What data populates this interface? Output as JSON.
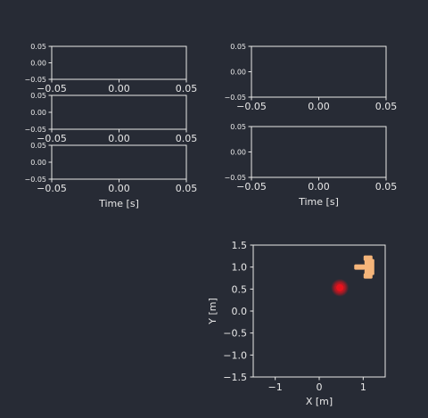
{
  "chart_data": [
    {
      "type": "line",
      "id": "left-1",
      "panel": "left",
      "row": 1,
      "xlim": [
        -0.05,
        0.05
      ],
      "ylim": [
        -0.05,
        0.05
      ],
      "x_ticks": [
        "−0.05",
        "0.00",
        "0.05"
      ],
      "y_ticks": [
        "0.05",
        "0.00",
        "−0.05"
      ],
      "xlabel": "",
      "series": []
    },
    {
      "type": "line",
      "id": "left-2",
      "panel": "left",
      "row": 2,
      "xlim": [
        -0.05,
        0.05
      ],
      "ylim": [
        -0.05,
        0.05
      ],
      "x_ticks": [
        "−0.05",
        "0.00",
        "0.05"
      ],
      "y_ticks": [
        "0.05",
        "0.00",
        "−0.05"
      ],
      "xlabel": "",
      "series": []
    },
    {
      "type": "line",
      "id": "left-3",
      "panel": "left",
      "row": 3,
      "xlim": [
        -0.05,
        0.05
      ],
      "ylim": [
        -0.05,
        0.05
      ],
      "x_ticks": [
        "−0.05",
        "0.00",
        "0.05"
      ],
      "y_ticks": [
        "0.05",
        "0.00",
        "−0.05"
      ],
      "xlabel": "Time [s]",
      "series": []
    },
    {
      "type": "line",
      "id": "right-1",
      "panel": "right",
      "row": 1,
      "xlim": [
        -0.05,
        0.05
      ],
      "ylim": [
        -0.05,
        0.05
      ],
      "x_ticks": [
        "−0.05",
        "0.00",
        "0.05"
      ],
      "y_ticks": [
        "0.05",
        "0.00",
        "−0.05"
      ],
      "xlabel": "",
      "series": []
    },
    {
      "type": "line",
      "id": "right-2",
      "panel": "right",
      "row": 2,
      "xlim": [
        -0.05,
        0.05
      ],
      "ylim": [
        -0.05,
        0.05
      ],
      "x_ticks": [
        "−0.05",
        "0.00",
        "0.05"
      ],
      "y_ticks": [
        "0.05",
        "0.00",
        "−0.05"
      ],
      "xlabel": "Time [s]",
      "series": []
    },
    {
      "type": "scatter",
      "id": "xy-map",
      "panel": "map",
      "xlim": [
        -1.5,
        1.5
      ],
      "ylim": [
        -1.5,
        1.5
      ],
      "x_ticks": [
        -1,
        0,
        1
      ],
      "y_ticks": [
        1.5,
        1.0,
        0.5,
        0.0,
        -0.5,
        -1.0,
        -1.5
      ],
      "x_tick_labels": [
        "−1",
        "0",
        "1"
      ],
      "y_tick_labels": [
        "1.5",
        "1.0",
        "0.5",
        "0.0",
        "−0.5",
        "−1.0",
        "−1.5"
      ],
      "xlabel": "X [m]",
      "ylabel": "Y [m]",
      "target": {
        "x": 0.47,
        "y": 0.53,
        "color": "#e8121c"
      },
      "robot": {
        "x": 1.1,
        "y": 1.0,
        "heading_deg": 180,
        "color": "#f5b57a"
      }
    }
  ]
}
